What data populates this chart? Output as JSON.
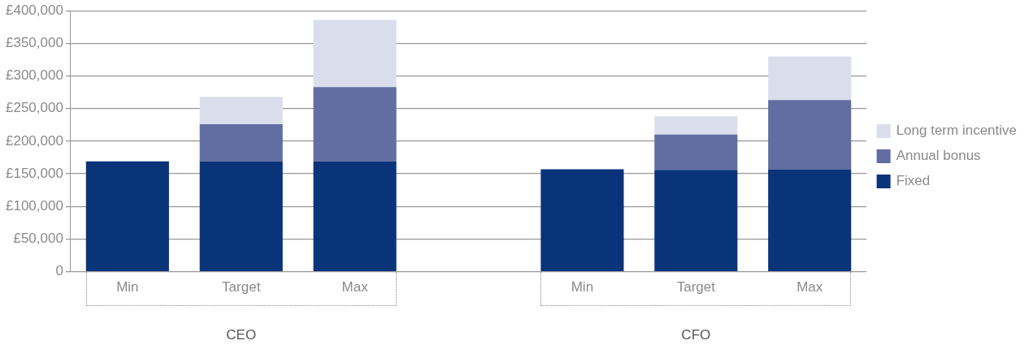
{
  "chart_data": {
    "type": "bar",
    "stacked": true,
    "categories": [
      "Min",
      "Target",
      "Max",
      null,
      "Min",
      "Target",
      "Max"
    ],
    "series": [
      {
        "name": "Fixed",
        "color": "#0a347a",
        "values": [
          169000,
          169000,
          169000,
          null,
          157000,
          156000,
          157000
        ]
      },
      {
        "name": "Annual bonus",
        "color": "#626da1",
        "values": [
          null,
          57000,
          114000,
          null,
          null,
          54000,
          106000
        ]
      },
      {
        "name": "Long term incentive",
        "color": "#dadeec",
        "values": [
          null,
          42000,
          103000,
          null,
          null,
          28000,
          67000
        ]
      }
    ],
    "ylim": [
      0,
      400000
    ],
    "yticks": [
      0,
      {
        "value": 50000,
        "label": "£50,000"
      },
      {
        "value": 100000,
        "label": "£100,000"
      },
      {
        "value": 150000,
        "label": "£150,000"
      },
      {
        "value": 200000,
        "label": "£200,000"
      },
      {
        "value": 250000,
        "label": "£250,000"
      },
      {
        "value": 300000,
        "label": "£300,000"
      },
      {
        "value": 350000,
        "label": "£350,000"
      },
      {
        "value": 400000,
        "label": "£400,000"
      }
    ],
    "grid": "y",
    "legend": "right",
    "annotations": [
      "CEO",
      "CFO"
    ]
  }
}
